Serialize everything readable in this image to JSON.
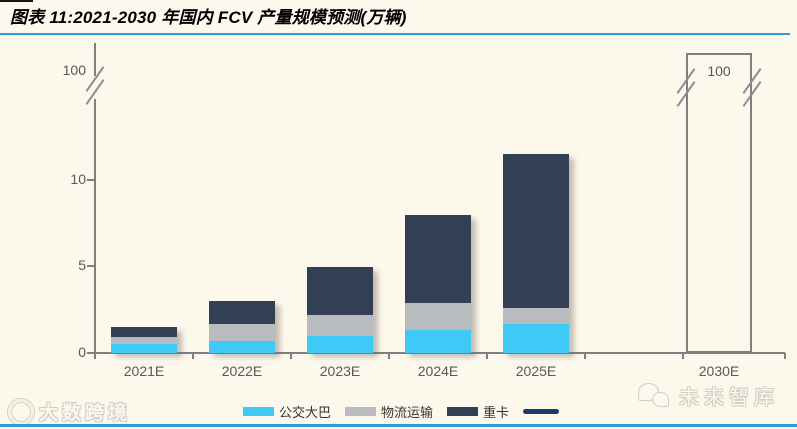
{
  "header": {
    "title": "图表 11:2021-2030 年国内 FCV 产量规模预测(万辆)"
  },
  "chart_data": {
    "type": "bar",
    "stacked": true,
    "title": "2021-2030 年国内 FCV 产量规模预测",
    "unit": "万辆",
    "categories": [
      "2021E",
      "2022E",
      "2023E",
      "2024E",
      "2025E",
      "2030E"
    ],
    "series": [
      {
        "name": "公交大巴",
        "color": "#3ec9f6",
        "values": [
          0.5,
          0.7,
          1.0,
          1.3,
          1.7,
          0
        ]
      },
      {
        "name": "物流运输",
        "color": "#b9bcbe",
        "values": [
          0.4,
          1.0,
          1.2,
          1.6,
          0.9,
          0
        ]
      },
      {
        "name": "重卡",
        "color": "#333f54",
        "values": [
          0.6,
          1.3,
          2.8,
          5.1,
          8.9,
          0
        ]
      }
    ],
    "totals": [
      1.5,
      3.0,
      5.0,
      8.0,
      11.5,
      100
    ],
    "outlined_category": {
      "label": "2030E",
      "value_label": "100"
    },
    "y_axis": {
      "ticks": [
        {
          "label": "0",
          "value": 0
        },
        {
          "label": "5",
          "value": 5
        },
        {
          "label": "10",
          "value": 10
        },
        {
          "label": "100",
          "value": 100
        }
      ],
      "axis_break": true,
      "grid": false
    },
    "legend_position": "bottom",
    "legend_extra_line_marker": true
  },
  "watermarks": {
    "bottom_left": "大数跨境",
    "right": "未来智库"
  },
  "colors": {
    "accent_rule": "#2b9ed7",
    "axis": "#7f7f7f",
    "tick_text": "#595959",
    "legend_line": "#1f3a66",
    "background": "#fcf8eb"
  }
}
